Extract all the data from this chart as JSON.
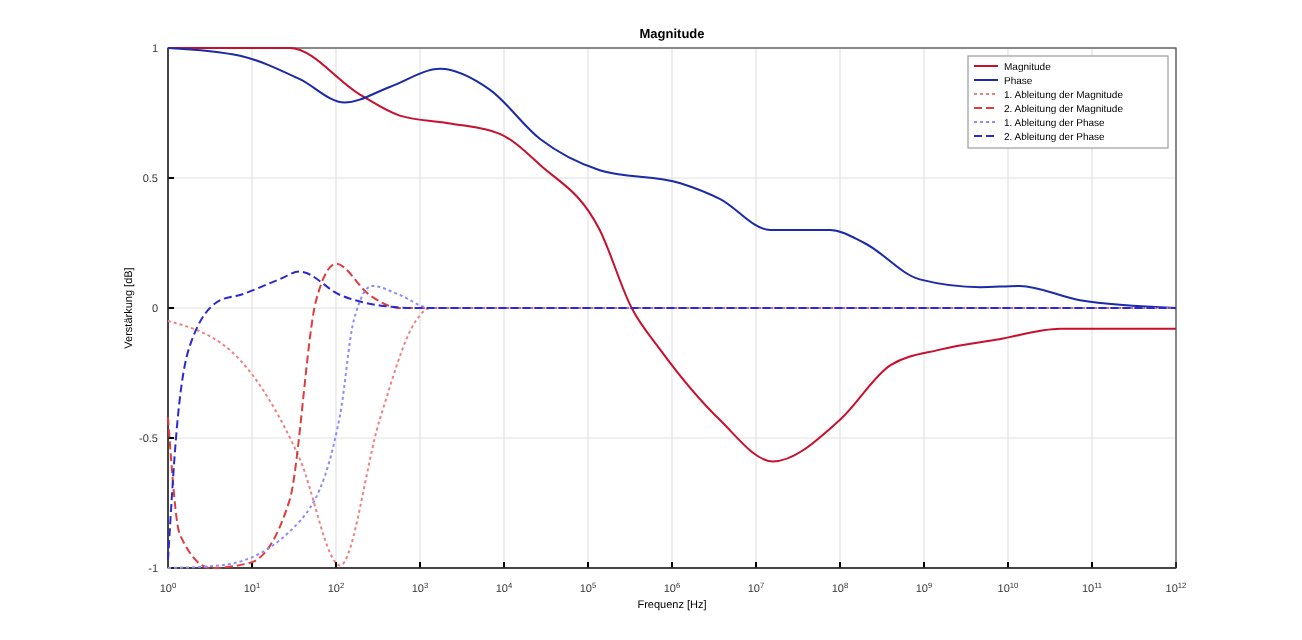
{
  "chart_data": {
    "type": "line",
    "title": "Magnitude",
    "xlabel": "Frequenz [Hz]",
    "ylabel": "Verstärkung [dB]",
    "log": "x",
    "grid": true,
    "legend": "top right",
    "xlim": [
      1,
      1000000000000.0
    ],
    "ylim": [
      -1,
      1
    ],
    "xticks": [
      {
        "value": 1,
        "label": "10$^{0}$"
      },
      {
        "value": 10,
        "label": "10$^{1}$"
      },
      {
        "value": 100,
        "label": "10$^{2}$"
      },
      {
        "value": 1000,
        "label": "10$^{3}$"
      },
      {
        "value": 10000,
        "label": "10$^{4}$"
      },
      {
        "value": 100000,
        "label": "10$^{5}$"
      },
      {
        "value": 1000000,
        "label": "10$^{6}$"
      },
      {
        "value": 10000000,
        "label": "10$^{7}$"
      },
      {
        "value": 100000000,
        "label": "10$^{8}$"
      },
      {
        "value": 1000000000,
        "label": "10$^{9}$"
      },
      {
        "value": 10000000000,
        "label": "10$^{10}$"
      },
      {
        "value": 100000000000,
        "label": "10$^{11}$"
      },
      {
        "value": 1000000000000,
        "label": "10$^{12}$"
      }
    ],
    "yticks": [
      -1,
      -0.5,
      0,
      0.5,
      1
    ],
    "series": [
      {
        "name": "Magnitude",
        "color": "#c8102e",
        "line_style": "solid",
        "x": [
          1,
          28,
          195,
          575,
          2290,
          8910,
          26900,
          138000,
          331000,
          724000,
          3700000,
          15800000,
          100000000,
          400000000,
          1550000000,
          7900000000,
          42000000000,
          1000000000000
        ],
        "values": [
          1,
          1,
          0.82,
          0.74,
          0.71,
          0.67,
          0.55,
          0.3,
          0,
          -0.16,
          -0.43,
          -0.59,
          -0.43,
          -0.22,
          -0.16,
          -0.12,
          -0.08,
          -0.08
        ]
      },
      {
        "name": "Phase",
        "color": "#1a2aa8",
        "line_style": "solid",
        "x": [
          1,
          7.2,
          37,
          126,
          437,
          1740,
          6760,
          26900,
          138000,
          1260000,
          3700000,
          14800000,
          76000000,
          195000000,
          890000000,
          4700000000,
          13800000000,
          72000000000,
          1000000000000
        ],
        "values": [
          1,
          0.97,
          0.88,
          0.79,
          0.85,
          0.92,
          0.84,
          0.65,
          0.53,
          0.48,
          0.42,
          0.3,
          0.3,
          0.25,
          0.11,
          0.08,
          0.085,
          0.03,
          0
        ]
      },
      {
        "name": "1. Ableitung der Magnitude",
        "color": "#f08080",
        "line_style": "dotted",
        "x": [
          1,
          7.2,
          37,
          112,
          331,
          891,
          1318,
          1000000000000
        ],
        "values": [
          -0.05,
          -0.2,
          -0.58,
          -0.99,
          -0.43,
          -0.05,
          0,
          0
        ]
      },
      {
        "name": "2. Ableitung der Magnitude",
        "color": "#e03c3c",
        "line_style": "dashed",
        "x": [
          1,
          1.38,
          3.2,
          9.5,
          28,
          58,
          100,
          251,
          575,
          1000000000000
        ],
        "values": [
          -0.42,
          -0.87,
          -1,
          -0.98,
          -0.74,
          0.03,
          0.17,
          0.05,
          0,
          0
        ]
      },
      {
        "name": "1. Ableitung der Phase",
        "color": "#8c8cff",
        "line_style": "dotted",
        "x": [
          1,
          4.2,
          37,
          112,
          162,
          269,
          575,
          1318,
          1000000000000
        ],
        "values": [
          -1,
          -0.99,
          -0.82,
          -0.41,
          -0.05,
          0.085,
          0.05,
          0,
          0
        ]
      },
      {
        "name": "2. Ableitung der Phase",
        "color": "#2a2ad0",
        "line_style": "dashed",
        "x": [
          1,
          1.26,
          1.8,
          4.2,
          7.2,
          21,
          37,
          112,
          331,
          891,
          1000000000000
        ],
        "values": [
          -0.97,
          -0.48,
          -0.15,
          0.03,
          0.05,
          0.11,
          0.14,
          0.05,
          0.01,
          0,
          0
        ]
      }
    ]
  }
}
